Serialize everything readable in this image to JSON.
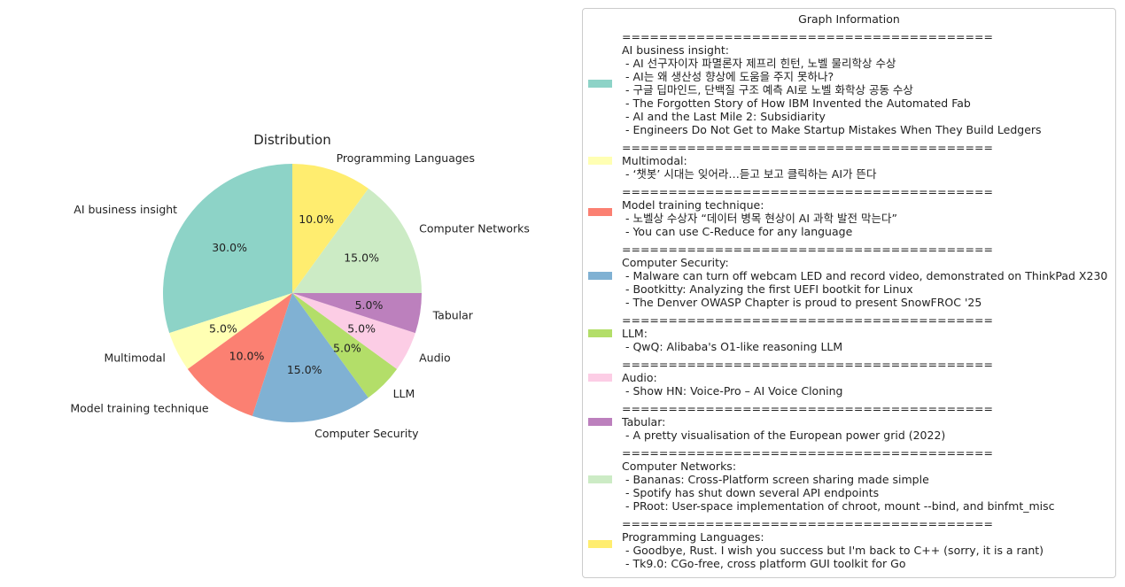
{
  "chart_data": {
    "type": "pie",
    "title": "Distribution",
    "slices": [
      {
        "label": "AI business insight",
        "value": 30.0,
        "pct_label": "30.0%",
        "color": "#8dd3c7"
      },
      {
        "label": "Multimodal",
        "value": 5.0,
        "pct_label": "5.0%",
        "color": "#ffffb3"
      },
      {
        "label": "Model training technique",
        "value": 10.0,
        "pct_label": "10.0%",
        "color": "#fb8072"
      },
      {
        "label": "Computer Security",
        "value": 15.0,
        "pct_label": "15.0%",
        "color": "#80b1d3"
      },
      {
        "label": "LLM",
        "value": 5.0,
        "pct_label": "5.0%",
        "color": "#b3de69"
      },
      {
        "label": "Audio",
        "value": 5.0,
        "pct_label": "5.0%",
        "color": "#fccde5"
      },
      {
        "label": "Tabular",
        "value": 5.0,
        "pct_label": "5.0%",
        "color": "#bc80bd"
      },
      {
        "label": "Computer Networks",
        "value": 15.0,
        "pct_label": "15.0%",
        "color": "#ccebc5"
      },
      {
        "label": "Programming Languages",
        "value": 10.0,
        "pct_label": "10.0%",
        "color": "#ffed6f"
      }
    ],
    "start_angle": 90,
    "direction": "counterclockwise",
    "legend": {
      "title": "Graph Information",
      "placement": "right",
      "separator": "========================================",
      "items": [
        {
          "category": "AI business insight:",
          "color": "#8dd3c7",
          "entries": [
            " - AI 선구자이자 파멸론자 제프리 힌턴, 노벨 물리학상 수상",
            " - AI는 왜 생산성 향상에 도움을 주지 못하나?",
            " - 구글 딥마인드, 단백질 구조 예측 AI로 노벨 화학상 공동 수상",
            " - The Forgotten Story of How IBM Invented the Automated Fab",
            " - AI and the Last Mile 2: Subsidiarity",
            " - Engineers Do Not Get to Make Startup Mistakes When They Build Ledgers"
          ]
        },
        {
          "category": "Multimodal:",
          "color": "#ffffb3",
          "entries": [
            " - ‘챗봇’ 시대는 잊어라…듣고 보고 클릭하는 AI가 뜬다"
          ]
        },
        {
          "category": "Model training technique:",
          "color": "#fb8072",
          "entries": [
            " - 노벨상 수상자 “데이터 병목 현상이 AI 과학 발전 막는다”",
            " - You can use C-Reduce for any language"
          ]
        },
        {
          "category": "Computer Security:",
          "color": "#80b1d3",
          "entries": [
            " - Malware can turn off webcam LED and record video, demonstrated on ThinkPad X230",
            " - Bootkitty: Analyzing the first UEFI bootkit for Linux",
            " - The Denver OWASP Chapter is proud to present SnowFROC '25"
          ]
        },
        {
          "category": "LLM:",
          "color": "#b3de69",
          "entries": [
            " - QwQ: Alibaba's O1-like reasoning LLM"
          ]
        },
        {
          "category": "Audio:",
          "color": "#fccde5",
          "entries": [
            " - Show HN: Voice-Pro – AI Voice Cloning"
          ]
        },
        {
          "category": "Tabular:",
          "color": "#bc80bd",
          "entries": [
            " - A pretty visualisation of the European power grid (2022)"
          ]
        },
        {
          "category": "Computer Networks:",
          "color": "#ccebc5",
          "entries": [
            " - Bananas: Cross-Platform screen sharing made simple",
            " - Spotify has shut down several API endpoints",
            " - PRoot: User-space implementation of chroot, mount --bind, and binfmt_misc"
          ]
        },
        {
          "category": "Programming Languages:",
          "color": "#ffed6f",
          "entries": [
            " - Goodbye, Rust. I wish you success but I'm back to C++ (sorry, it is a rant)",
            " - Tk9.0: CGo-free, cross platform GUI toolkit for Go"
          ]
        }
      ]
    }
  }
}
